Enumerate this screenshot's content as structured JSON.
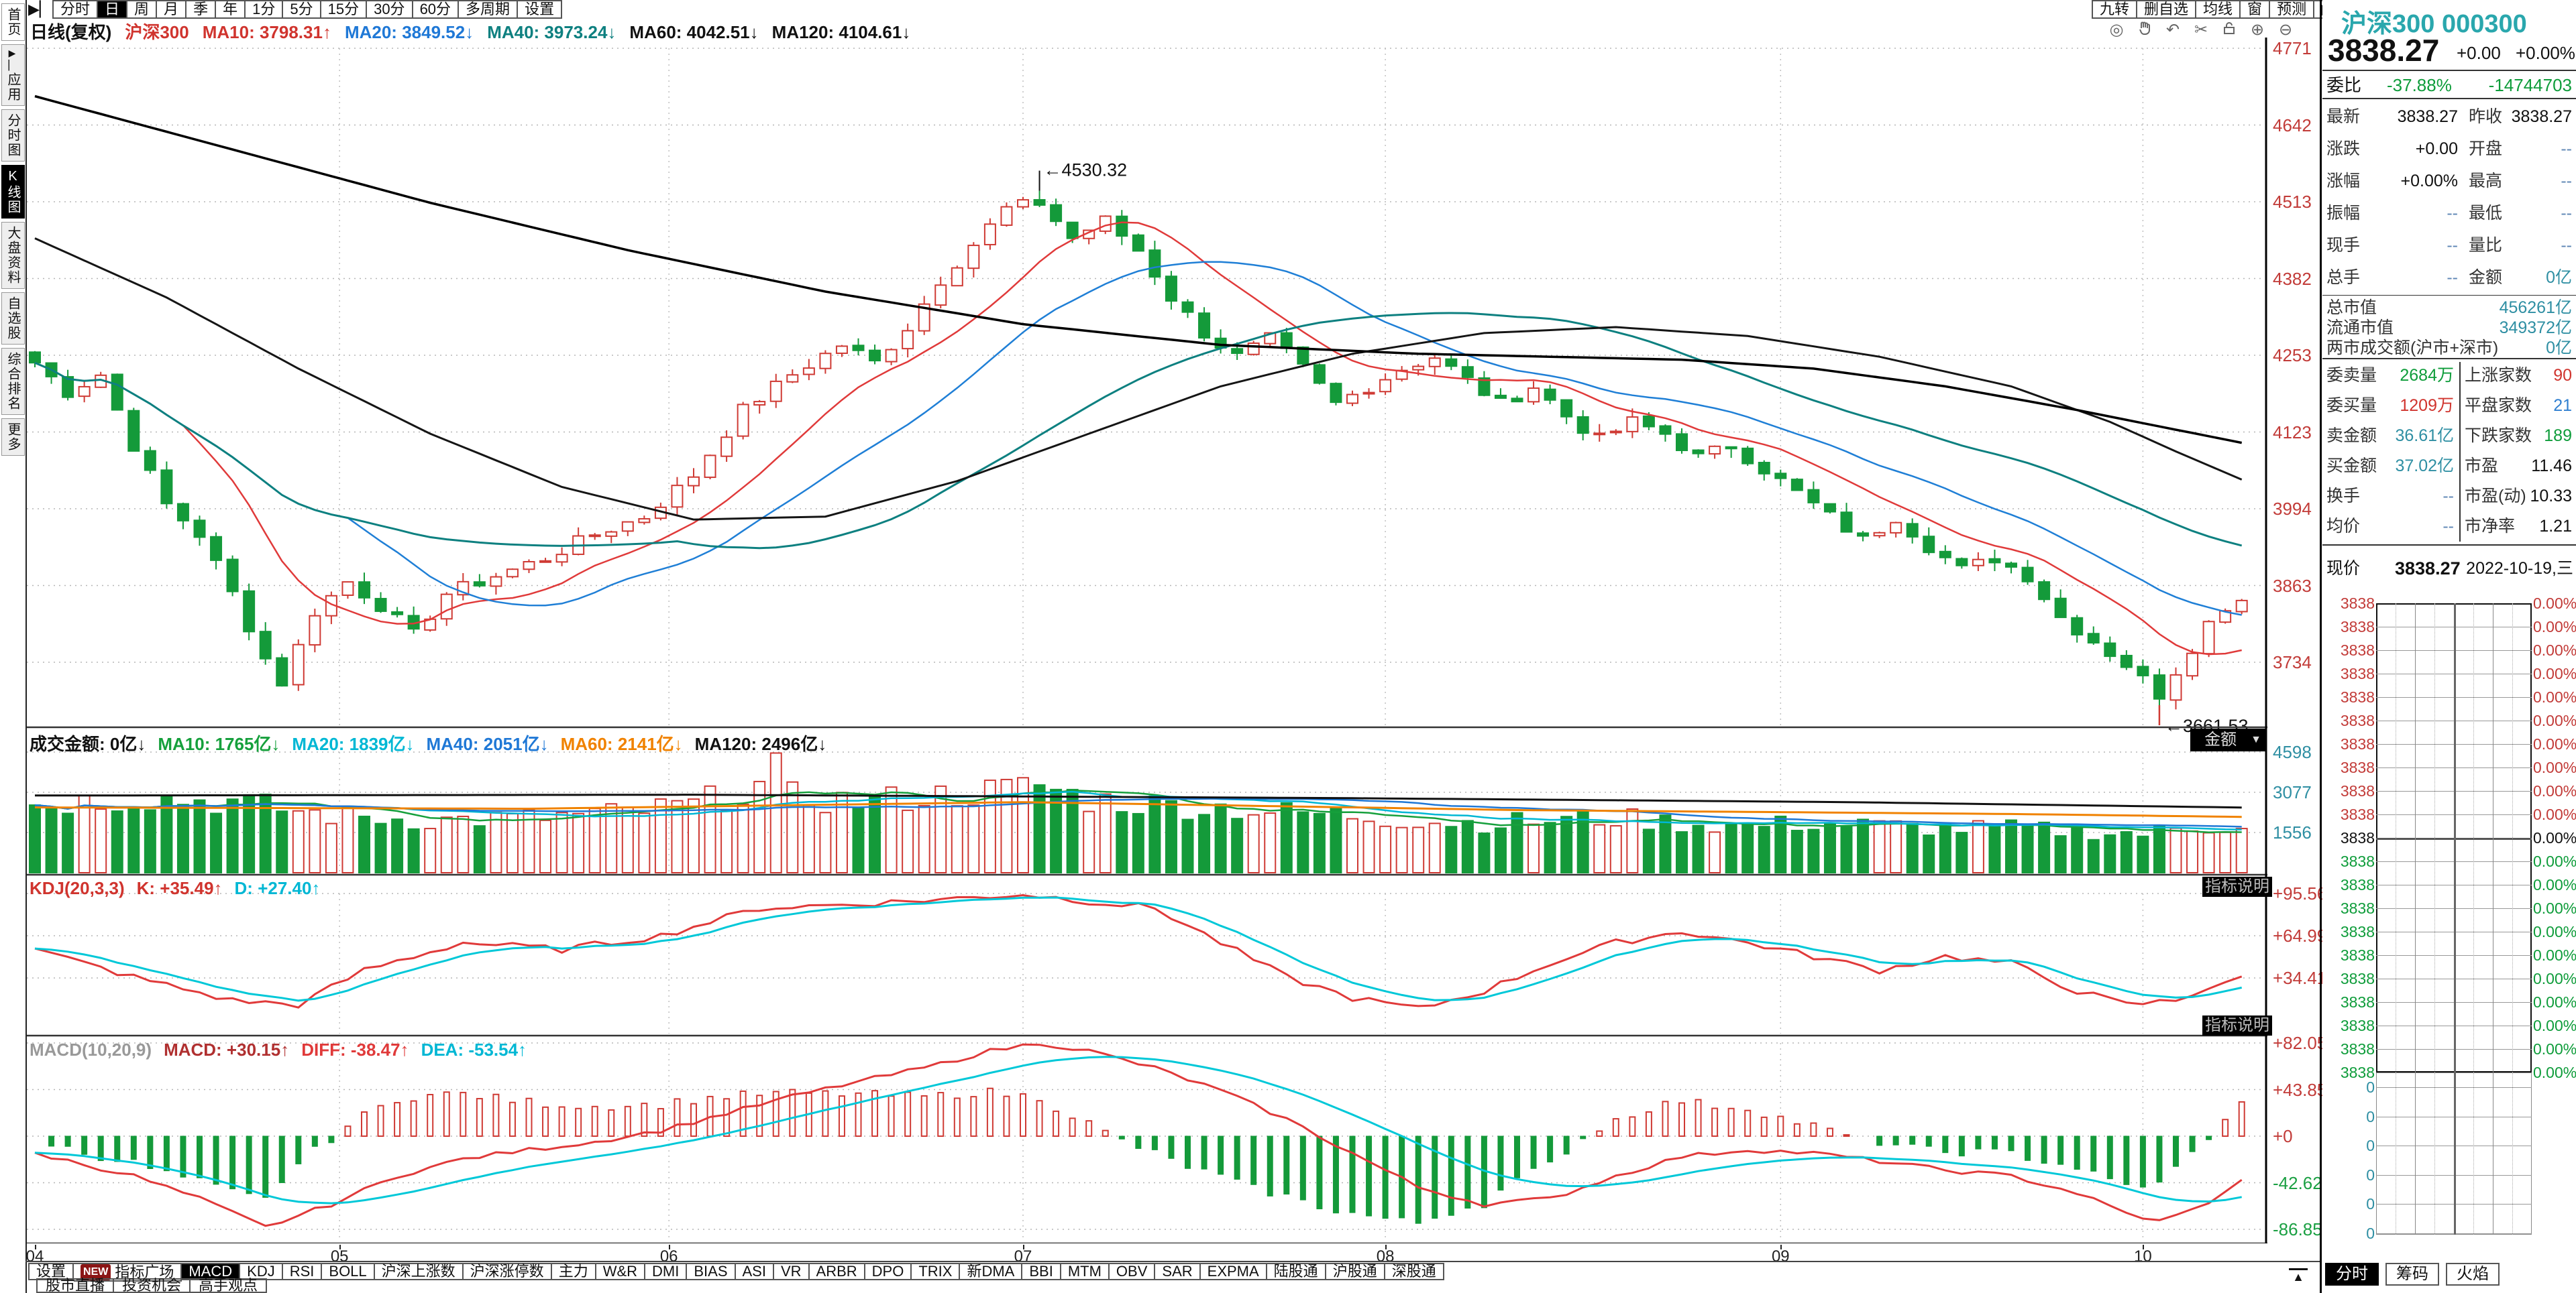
{
  "toolbar": {
    "nav_prev_icon": "▶▏",
    "periods": [
      "分时",
      "日",
      "周",
      "月",
      "季",
      "年",
      "1分",
      "5分",
      "15分",
      "30分",
      "60分",
      "多周期",
      "设置"
    ],
    "selected_period": "日",
    "right_buttons": [
      "九转",
      "删自选",
      "均线",
      "窗",
      "预测"
    ],
    "nav_next_icon": "▶▏",
    "tool_icons": [
      "target-icon",
      "hand-icon",
      "undo-icon",
      "scissors-icon",
      "lock-icon",
      "zoom-in-icon",
      "zoom-out-icon"
    ]
  },
  "sidebar": {
    "items": [
      {
        "label": "首页",
        "selected": false
      },
      {
        "label": "应用",
        "selected": false,
        "icon": "▶▏"
      },
      {
        "label": "分时图",
        "selected": false
      },
      {
        "label": "K线图",
        "selected": true
      },
      {
        "label": "大盘资料",
        "selected": false
      },
      {
        "label": "自选股",
        "selected": false
      },
      {
        "label": "综合排名",
        "selected": false
      },
      {
        "label": "更多",
        "selected": false
      }
    ]
  },
  "chart_header": {
    "items": [
      {
        "t": "日线(复权)",
        "c": "#111111"
      },
      {
        "t": "沪深300",
        "c": "#d0342e"
      },
      {
        "t": "MA10: 3798.31↑",
        "c": "#d0342e"
      },
      {
        "t": "MA20: 3849.52↓",
        "c": "#1f78d6"
      },
      {
        "t": "MA40: 3973.24↓",
        "c": "#0e8080"
      },
      {
        "t": "MA60: 4042.51↓",
        "c": "#111111"
      },
      {
        "t": "MA120: 4104.61↓",
        "c": "#111111"
      }
    ]
  },
  "panes": {
    "volume": {
      "header": [
        {
          "t": "成交金额: 0亿↓",
          "c": "#111111"
        },
        {
          "t": "MA10: 1765亿↓",
          "c": "#16a03c"
        },
        {
          "t": "MA20: 1839亿↓",
          "c": "#00b7d4"
        },
        {
          "t": "MA40: 2051亿↓",
          "c": "#1f78d6"
        },
        {
          "t": "MA60: 2141亿↓",
          "c": "#f08200"
        },
        {
          "t": "MA120: 2496亿↓",
          "c": "#111111"
        }
      ],
      "dropdown": "金额",
      "axis": [
        "4598",
        "3077",
        "1556"
      ]
    },
    "kdj": {
      "header": [
        {
          "t": "KDJ(20,3,3)",
          "c": "#d0342e"
        },
        {
          "t": "K: +35.49↑",
          "c": "#d0342e"
        },
        {
          "t": "D: +27.40↑",
          "c": "#00b7d4"
        }
      ],
      "badge": "指标说明",
      "axis": [
        "+95.56",
        "+64.99",
        "+34.41"
      ]
    },
    "macd": {
      "header": [
        {
          "t": "MACD(10,20,9)",
          "c": "#999999"
        },
        {
          "t": "MACD: +30.15↑",
          "c": "#b03030"
        },
        {
          "t": "DIFF: -38.47↑",
          "c": "#e03a3a"
        },
        {
          "t": "DEA: -53.54↑",
          "c": "#00b7d4"
        }
      ],
      "badge": "指标说明",
      "axis": [
        "+82.05",
        "+43.85",
        "+0",
        "-42.62",
        "-86.85"
      ],
      "axis_colors": [
        "#c23b38",
        "#c23b38",
        "#c23b38",
        "#1ba043",
        "#1ba043"
      ]
    }
  },
  "main_axis": [
    "4771",
    "4642",
    "4513",
    "4382",
    "4253",
    "4123",
    "3994",
    "3863",
    "3734"
  ],
  "xaxis": [
    "04",
    "05",
    "06",
    "07",
    "08",
    "09",
    "10"
  ],
  "indicator_bar": {
    "settings": "设置",
    "new_badge": "NEW",
    "plaza": "指标广场",
    "tabs": [
      "MACD",
      "KDJ",
      "RSI",
      "BOLL",
      "沪深上涨数",
      "沪深涨停数",
      "主力",
      "W&R",
      "DMI",
      "BIAS",
      "ASI",
      "VR",
      "ARBR",
      "DPO",
      "TRIX",
      "新DMA",
      "BBI",
      "MTM",
      "OBV",
      "SAR",
      "EXPMA",
      "陆股通",
      "沪股通",
      "深股通"
    ],
    "selected": "MACD"
  },
  "bottom_bar": [
    "股市直播",
    "投资机会",
    "高手观点"
  ],
  "right_panel": {
    "title": "沪深300 000300",
    "price": "3838.27",
    "change": "+0.00",
    "change_pct": "+0.00%",
    "weibi": {
      "label": "委比",
      "value": "-37.88%",
      "extra": "-14744703"
    },
    "rows6": [
      [
        "最新",
        "3838.27",
        "c-black",
        "昨收",
        "3838.27",
        "c-black"
      ],
      [
        "涨跌",
        "+0.00",
        "c-black",
        "开盘",
        "--",
        "c-dash"
      ],
      [
        "涨幅",
        "+0.00%",
        "c-black",
        "最高",
        "--",
        "c-dash"
      ],
      [
        "振幅",
        "--",
        "c-dash",
        "最低",
        "--",
        "c-dash"
      ],
      [
        "现手",
        "--",
        "c-dash",
        "量比",
        "--",
        "c-dash"
      ],
      [
        "总手",
        "--",
        "c-dash",
        "金额",
        "0亿",
        "c-teal"
      ]
    ],
    "cap_rows": [
      [
        "总市值",
        "456261亿"
      ],
      [
        "流通市值",
        "349372亿"
      ],
      [
        "两市成交额(沪市+深市)",
        "0亿"
      ]
    ],
    "stat_rows": [
      [
        "委卖量",
        "2684万",
        "c-green",
        "上涨家数",
        "90",
        "c-red"
      ],
      [
        "委买量",
        "1209万",
        "c-red",
        "平盘家数",
        "21",
        "c-blue"
      ],
      [
        "卖金额",
        "36.61亿",
        "c-teal",
        "下跌家数",
        "189",
        "c-green"
      ],
      [
        "买金额",
        "37.02亿",
        "c-teal",
        "市盈",
        "11.46",
        "c-black"
      ],
      [
        "换手",
        "--",
        "c-dash",
        "市盈(动)",
        "10.33",
        "c-black"
      ],
      [
        "均价",
        "--",
        "c-dash",
        "市净率",
        "1.21",
        "c-black"
      ]
    ],
    "current": {
      "label": "现价",
      "value": "3838.27",
      "date": "2022-10-19,三"
    },
    "mini": {
      "price_label": "3838",
      "percent_label": "0.00%",
      "rows_above": 10,
      "rows_below": 10,
      "volume_labels": [
        "0",
        "0",
        "0",
        "0",
        "0",
        "0"
      ]
    },
    "tabs": [
      "分时",
      "筹码",
      "火焰"
    ],
    "selected_tab": "分时"
  },
  "chart_data": {
    "type": "candlestick+volume+kdj+macd",
    "symbol": "沪深300 000300",
    "period": "日线(复权)",
    "date": "2022-10-19",
    "last_close": 3838.27,
    "x_months": [
      "04",
      "05",
      "06",
      "07",
      "08",
      "09",
      "10"
    ],
    "month_candle_idx": [
      0,
      18.5,
      38.5,
      60,
      82,
      106,
      128
    ],
    "n_candles": 135,
    "price_axis": [
      4771,
      4642,
      4513,
      4382,
      4253,
      4123,
      3994,
      3863,
      3734
    ],
    "annotations": {
      "high": 4530.32,
      "low": 3661.53
    },
    "ma_values": {
      "MA10": 3798.31,
      "MA20": 3849.52,
      "MA40": 3973.24,
      "MA60": 4042.51,
      "MA120": 4104.61
    },
    "volume_axis": [
      4598,
      3077,
      1556
    ],
    "volume_ma": {
      "MA10": 1765,
      "MA20": 1839,
      "MA40": 2051,
      "MA60": 2141,
      "MA120": 2496
    },
    "kdj_values": {
      "K": 35.49,
      "D": 27.4
    },
    "macd_values": {
      "MACD": 30.15,
      "DIFF": -38.47,
      "DEA": -53.54
    },
    "close_anchors": [
      [
        0,
        4240
      ],
      [
        2,
        4190
      ],
      [
        4,
        4220
      ],
      [
        6,
        4100
      ],
      [
        8,
        4000
      ],
      [
        10,
        3950
      ],
      [
        12,
        3850
      ],
      [
        14,
        3740
      ],
      [
        15,
        3700
      ],
      [
        17,
        3820
      ],
      [
        19,
        3870
      ],
      [
        21,
        3830
      ],
      [
        23,
        3780
      ],
      [
        25,
        3850
      ],
      [
        28,
        3880
      ],
      [
        31,
        3910
      ],
      [
        34,
        3950
      ],
      [
        37,
        3980
      ],
      [
        40,
        4050
      ],
      [
        43,
        4160
      ],
      [
        46,
        4220
      ],
      [
        49,
        4270
      ],
      [
        51,
        4240
      ],
      [
        53,
        4300
      ],
      [
        55,
        4380
      ],
      [
        57,
        4440
      ],
      [
        59,
        4500
      ],
      [
        61,
        4510
      ],
      [
        63,
        4450
      ],
      [
        65,
        4480
      ],
      [
        67,
        4430
      ],
      [
        69,
        4350
      ],
      [
        71,
        4290
      ],
      [
        73,
        4250
      ],
      [
        75,
        4280
      ],
      [
        77,
        4230
      ],
      [
        79,
        4170
      ],
      [
        81,
        4200
      ],
      [
        83,
        4230
      ],
      [
        85,
        4250
      ],
      [
        87,
        4210
      ],
      [
        89,
        4170
      ],
      [
        91,
        4200
      ],
      [
        93,
        4150
      ],
      [
        95,
        4110
      ],
      [
        97,
        4140
      ],
      [
        99,
        4120
      ],
      [
        101,
        4080
      ],
      [
        103,
        4100
      ],
      [
        105,
        4060
      ],
      [
        107,
        4020
      ],
      [
        109,
        3980
      ],
      [
        111,
        3940
      ],
      [
        113,
        3980
      ],
      [
        115,
        3930
      ],
      [
        117,
        3890
      ],
      [
        119,
        3910
      ],
      [
        121,
        3880
      ],
      [
        123,
        3810
      ],
      [
        125,
        3770
      ],
      [
        127,
        3730
      ],
      [
        129,
        3680
      ],
      [
        130,
        3720
      ],
      [
        131,
        3760
      ],
      [
        132,
        3800
      ],
      [
        133,
        3830
      ],
      [
        134,
        3838.27
      ]
    ],
    "ma60_anchors": [
      [
        0,
        4450
      ],
      [
        8,
        4350
      ],
      [
        16,
        4230
      ],
      [
        24,
        4120
      ],
      [
        32,
        4030
      ],
      [
        40,
        3975
      ],
      [
        48,
        3980
      ],
      [
        56,
        4040
      ],
      [
        64,
        4120
      ],
      [
        72,
        4200
      ],
      [
        80,
        4255
      ],
      [
        88,
        4290
      ],
      [
        96,
        4300
      ],
      [
        104,
        4285
      ],
      [
        112,
        4250
      ],
      [
        120,
        4200
      ],
      [
        126,
        4140
      ],
      [
        130,
        4090
      ],
      [
        134,
        4042.51
      ]
    ],
    "ma120_anchors": [
      [
        0,
        4690
      ],
      [
        12,
        4600
      ],
      [
        24,
        4510
      ],
      [
        36,
        4430
      ],
      [
        48,
        4360
      ],
      [
        60,
        4305
      ],
      [
        72,
        4270
      ],
      [
        84,
        4255
      ],
      [
        92,
        4250
      ],
      [
        100,
        4245
      ],
      [
        108,
        4230
      ],
      [
        116,
        4200
      ],
      [
        124,
        4160
      ],
      [
        134,
        4104.61
      ]
    ],
    "volume_anchors": [
      [
        0,
        2600
      ],
      [
        6,
        2900
      ],
      [
        12,
        2700
      ],
      [
        18,
        2200
      ],
      [
        24,
        2000
      ],
      [
        30,
        2100
      ],
      [
        36,
        2300
      ],
      [
        40,
        2600
      ],
      [
        44,
        3300
      ],
      [
        46,
        2900
      ],
      [
        50,
        2700
      ],
      [
        54,
        2900
      ],
      [
        58,
        3100
      ],
      [
        61,
        3300
      ],
      [
        64,
        2800
      ],
      [
        68,
        2600
      ],
      [
        72,
        2500
      ],
      [
        76,
        2300
      ],
      [
        80,
        2200
      ],
      [
        84,
        2000
      ],
      [
        88,
        1900
      ],
      [
        92,
        2000
      ],
      [
        96,
        2100
      ],
      [
        100,
        1900
      ],
      [
        104,
        1800
      ],
      [
        108,
        1900
      ],
      [
        112,
        1800
      ],
      [
        116,
        1700
      ],
      [
        120,
        1700
      ],
      [
        124,
        1600
      ],
      [
        128,
        1500
      ],
      [
        131,
        1750
      ],
      [
        134,
        1850
      ]
    ],
    "vol_ma60_anchors": [
      [
        0,
        2500
      ],
      [
        30,
        2450
      ],
      [
        60,
        2700
      ],
      [
        90,
        2400
      ],
      [
        120,
        2250
      ],
      [
        134,
        2141
      ]
    ],
    "vol_ma120_anchors": [
      [
        0,
        2950
      ],
      [
        40,
        2980
      ],
      [
        80,
        2850
      ],
      [
        110,
        2700
      ],
      [
        134,
        2496
      ]
    ],
    "kdj_k_anchors": [
      [
        0,
        55
      ],
      [
        6,
        35
      ],
      [
        12,
        18
      ],
      [
        16,
        15
      ],
      [
        20,
        40
      ],
      [
        26,
        60
      ],
      [
        32,
        55
      ],
      [
        38,
        65
      ],
      [
        44,
        85
      ],
      [
        50,
        88
      ],
      [
        56,
        92
      ],
      [
        60,
        95
      ],
      [
        64,
        90
      ],
      [
        68,
        85
      ],
      [
        72,
        60
      ],
      [
        76,
        35
      ],
      [
        80,
        20
      ],
      [
        84,
        12
      ],
      [
        88,
        25
      ],
      [
        92,
        45
      ],
      [
        96,
        60
      ],
      [
        100,
        68
      ],
      [
        104,
        60
      ],
      [
        108,
        50
      ],
      [
        112,
        40
      ],
      [
        116,
        50
      ],
      [
        120,
        45
      ],
      [
        124,
        25
      ],
      [
        127,
        15
      ],
      [
        130,
        18
      ],
      [
        132,
        28
      ],
      [
        134,
        35.49
      ]
    ],
    "macd_diff_anchors": [
      [
        0,
        -15
      ],
      [
        6,
        -35
      ],
      [
        10,
        -55
      ],
      [
        14,
        -80
      ],
      [
        18,
        -60
      ],
      [
        22,
        -35
      ],
      [
        26,
        -20
      ],
      [
        30,
        -12
      ],
      [
        34,
        -5
      ],
      [
        38,
        5
      ],
      [
        42,
        20
      ],
      [
        46,
        35
      ],
      [
        50,
        48
      ],
      [
        54,
        60
      ],
      [
        58,
        75
      ],
      [
        61,
        82
      ],
      [
        64,
        75
      ],
      [
        68,
        60
      ],
      [
        72,
        40
      ],
      [
        76,
        15
      ],
      [
        80,
        -15
      ],
      [
        84,
        -45
      ],
      [
        88,
        -60
      ],
      [
        92,
        -55
      ],
      [
        96,
        -35
      ],
      [
        100,
        -18
      ],
      [
        104,
        -12
      ],
      [
        108,
        -15
      ],
      [
        112,
        -22
      ],
      [
        116,
        -30
      ],
      [
        120,
        -35
      ],
      [
        124,
        -50
      ],
      [
        127,
        -68
      ],
      [
        129,
        -75
      ],
      [
        131,
        -65
      ],
      [
        133,
        -50
      ],
      [
        134,
        -38.47
      ]
    ]
  }
}
